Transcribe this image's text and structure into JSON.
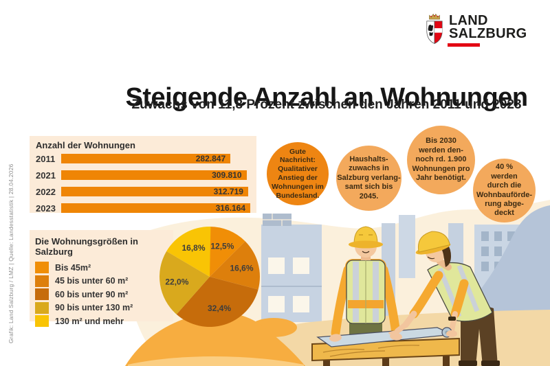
{
  "logo": {
    "line1": "LAND",
    "line2": "SALZBURG"
  },
  "header": {
    "title": "Steigende Anzahl an Wohnungen",
    "subtitle": "Zuwachs von 11,8 Prozent zwischen den Jahren 2011 und 2023"
  },
  "credit_line": "Grafik: Land Salzburg / LMZ  |  Quelle: Landesstatistik  |  28.04.2026",
  "bubbles": [
    {
      "lines": [
        "Gute",
        "Nachricht:",
        "Qualitativer",
        "Anstieg der",
        "Wohnungen im",
        "Bundesland."
      ],
      "fill": "#EE8512"
    },
    {
      "lines": [
        "Haushalts-",
        "zuwachs in",
        "Salzburg verlang-",
        "samt sich bis",
        "2045."
      ],
      "fill": "#F3A95C"
    },
    {
      "lines": [
        "Bis 2030",
        "werden den-",
        "noch rd. 1.900",
        "Wohnungen pro",
        "Jahr benötigt."
      ],
      "fill": "#F3A95C"
    },
    {
      "lines": [
        "40 %",
        "werden",
        "durch die",
        "Wohnbauförde-",
        "rung abge-",
        "deckt"
      ],
      "fill": "#F3A95C"
    }
  ],
  "chart_data": [
    {
      "type": "bar",
      "orientation": "horizontal",
      "title": "Anzahl der Wohnungen",
      "categories": [
        "2011",
        "2021",
        "2022",
        "2023"
      ],
      "values": [
        282847,
        309810,
        312719,
        316164
      ],
      "value_labels": [
        "282.847",
        "309.810",
        "312.719",
        "316.164"
      ],
      "bar_color": "#EF8505",
      "panel_bg": "#FCEBD8",
      "xlim": [
        0,
        316164
      ],
      "grid": false
    },
    {
      "type": "pie",
      "title": "Die Wohnungsgrößen in Salzburg",
      "categories": [
        "Bis 45m²",
        "45 bis unter 60 m²",
        "60 bis unter 90 m²",
        "90 bis unter 130 m²",
        "130 m² und mehr"
      ],
      "values": [
        12.5,
        16.6,
        32.4,
        22.0,
        16.8
      ],
      "labels": [
        "12,5%",
        "16,6%",
        "32,4%",
        "22,0%",
        "16,8%"
      ],
      "colors": [
        "#F08E07",
        "#DD7F0C",
        "#C66C0B",
        "#D9A91D",
        "#F9C405"
      ],
      "start_angle_deg": 0,
      "direction": "clockwise",
      "legend_position": "left"
    }
  ],
  "colors": {
    "page_bg": "#FFFFFF",
    "panel_bg": "#FCEBD8",
    "accent_red": "#E30613",
    "scene_cream": "#FBF0DC",
    "label_text": "#3D3D3D",
    "bubble_text": "#3C2B13"
  }
}
